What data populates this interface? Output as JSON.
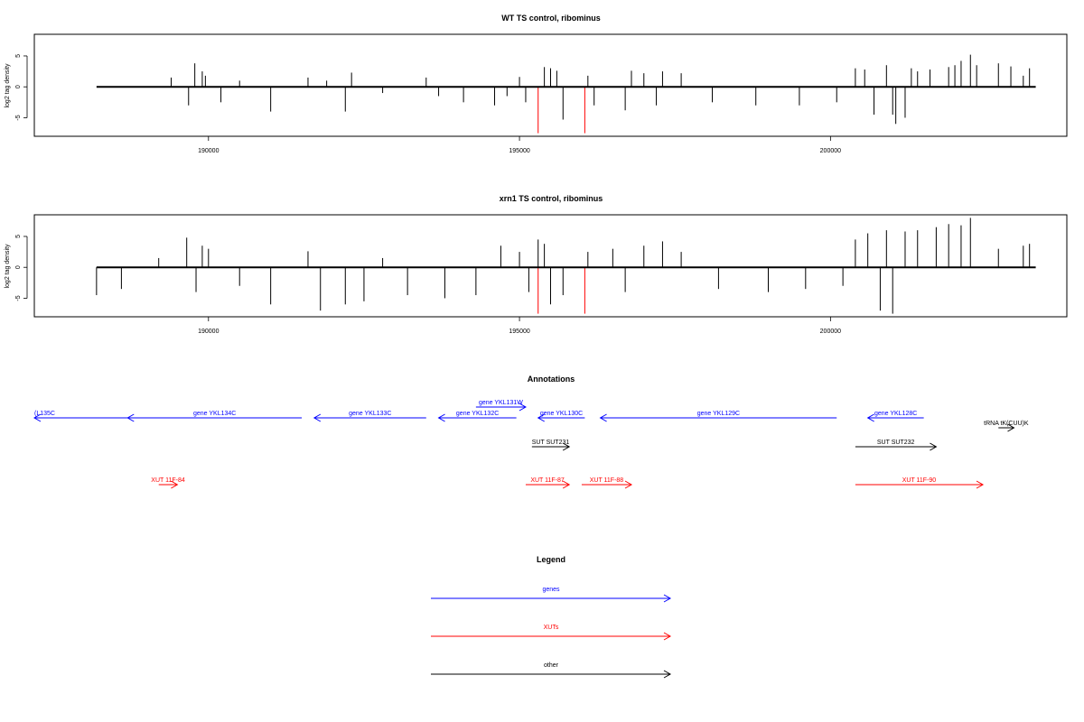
{
  "chart_data": [
    {
      "type": "bar",
      "title": "WT TS control, ribominus",
      "xlabel": "",
      "ylabel": "log2 tag density",
      "xlim": [
        187200,
        203800
      ],
      "ylim": [
        -8,
        8.5
      ],
      "x_ticks": [
        "190000",
        "195000",
        "200000"
      ],
      "y_ticks": [
        "5",
        "0",
        "-5"
      ],
      "grid": false,
      "series": [
        {
          "color": "#000000",
          "points": [
            [
              189400,
              1.5
            ],
            [
              189680,
              -3
            ],
            [
              189780,
              3.8
            ],
            [
              189900,
              2.5
            ],
            [
              189950,
              1.8
            ],
            [
              190200,
              -2.5
            ],
            [
              190500,
              1.0
            ],
            [
              191000,
              -4
            ],
            [
              191600,
              1.5
            ],
            [
              191900,
              1.0
            ],
            [
              192200,
              -4
            ],
            [
              192300,
              2.3
            ],
            [
              192800,
              -1
            ],
            [
              193500,
              1.5
            ],
            [
              193700,
              -1.5
            ],
            [
              194100,
              -2.5
            ],
            [
              194600,
              -3
            ],
            [
              194800,
              -1.5
            ],
            [
              195000,
              1.6
            ],
            [
              195100,
              -2.5
            ],
            [
              195400,
              3.2
            ],
            [
              195500,
              3.0
            ],
            [
              195600,
              2.6
            ],
            [
              195700,
              -5.3
            ],
            [
              196100,
              1.8
            ],
            [
              196200,
              -3
            ],
            [
              196700,
              -3.8
            ],
            [
              196800,
              2.6
            ],
            [
              197000,
              2.2
            ],
            [
              197200,
              -3
            ],
            [
              197300,
              2.5
            ],
            [
              197600,
              2.2
            ],
            [
              198100,
              -2.5
            ],
            [
              198800,
              -3
            ],
            [
              199500,
              -3
            ],
            [
              200100,
              -2.5
            ],
            [
              200400,
              3.0
            ],
            [
              200550,
              2.8
            ],
            [
              200700,
              -4.5
            ],
            [
              200900,
              3.5
            ],
            [
              201000,
              -4.5
            ],
            [
              201050,
              -6
            ],
            [
              201200,
              -5
            ],
            [
              201300,
              3.0
            ],
            [
              201400,
              2.5
            ],
            [
              201600,
              2.8
            ],
            [
              201900,
              3.2
            ],
            [
              202000,
              3.5
            ],
            [
              202100,
              4.2
            ],
            [
              202250,
              5.2
            ],
            [
              202350,
              3.5
            ],
            [
              202700,
              3.8
            ],
            [
              202900,
              3.3
            ],
            [
              203100,
              1.8
            ],
            [
              203200,
              3.0
            ]
          ]
        },
        {
          "color": "#ff0000",
          "points": [
            [
              195300,
              -7.5
            ],
            [
              196050,
              -7.5
            ]
          ]
        }
      ]
    },
    {
      "type": "bar",
      "title": "xrn1 TS control, ribominus",
      "xlabel": "",
      "ylabel": "log2 tag density",
      "xlim": [
        187200,
        203800
      ],
      "ylim": [
        -8,
        8.5
      ],
      "x_ticks": [
        "190000",
        "195000",
        "200000"
      ],
      "y_ticks": [
        "5",
        "0",
        "-5"
      ],
      "grid": false,
      "series": [
        {
          "color": "#000000",
          "points": [
            [
              188200,
              -4.5
            ],
            [
              188600,
              -3.5
            ],
            [
              189200,
              1.5
            ],
            [
              189650,
              4.8
            ],
            [
              189800,
              -4.0
            ],
            [
              189900,
              3.5
            ],
            [
              190000,
              3.0
            ],
            [
              190500,
              -3.0
            ],
            [
              191000,
              -6.0
            ],
            [
              191600,
              2.6
            ],
            [
              191800,
              -7.0
            ],
            [
              192200,
              -6.0
            ],
            [
              192500,
              -5.5
            ],
            [
              192800,
              1.5
            ],
            [
              193200,
              -4.5
            ],
            [
              193800,
              -5.0
            ],
            [
              194300,
              -4.5
            ],
            [
              194700,
              3.5
            ],
            [
              195000,
              2.5
            ],
            [
              195150,
              -4.0
            ],
            [
              195300,
              4.5
            ],
            [
              195400,
              3.8
            ],
            [
              195500,
              -6.0
            ],
            [
              195700,
              -4.5
            ],
            [
              196100,
              2.5
            ],
            [
              196500,
              3.0
            ],
            [
              196700,
              -4.0
            ],
            [
              197000,
              3.5
            ],
            [
              197300,
              4.2
            ],
            [
              197600,
              2.5
            ],
            [
              198200,
              -3.5
            ],
            [
              199000,
              -4.0
            ],
            [
              199600,
              -3.5
            ],
            [
              200200,
              -3.0
            ],
            [
              200400,
              4.5
            ],
            [
              200600,
              5.5
            ],
            [
              200800,
              -7.0
            ],
            [
              200900,
              6.0
            ],
            [
              201000,
              -7.5
            ],
            [
              201200,
              5.8
            ],
            [
              201400,
              6.0
            ],
            [
              201700,
              6.5
            ],
            [
              201900,
              7.0
            ],
            [
              202100,
              6.8
            ],
            [
              202250,
              8.0
            ],
            [
              202700,
              3.0
            ],
            [
              203100,
              3.5
            ],
            [
              203200,
              3.8
            ]
          ]
        },
        {
          "color": "#ff0000",
          "points": [
            [
              195300,
              -7.5
            ],
            [
              196050,
              -7.5
            ]
          ]
        }
      ]
    }
  ],
  "annotations": {
    "title": "Annotations",
    "features": [
      {
        "label": "(L135C",
        "kind": "gene",
        "color": "#0000ff",
        "start": 186900,
        "end": 188700,
        "strand": "-",
        "row": 1
      },
      {
        "label": "gene YKL134C",
        "kind": "gene",
        "color": "#0000ff",
        "start": 188700,
        "end": 191500,
        "strand": "-",
        "row": 1
      },
      {
        "label": "gene YKL133C",
        "kind": "gene",
        "color": "#0000ff",
        "start": 191700,
        "end": 193500,
        "strand": "-",
        "row": 1
      },
      {
        "label": "gene YKL132C",
        "kind": "gene",
        "color": "#0000ff",
        "start": 193700,
        "end": 194950,
        "strand": "-",
        "row": 1
      },
      {
        "label": "gene YKL131W",
        "kind": "gene",
        "color": "#0000ff",
        "start": 194300,
        "end": 195100,
        "strand": "+",
        "row": 0
      },
      {
        "label": "gene YKL130C",
        "kind": "gene",
        "color": "#0000ff",
        "start": 195300,
        "end": 196050,
        "strand": "-",
        "row": 1
      },
      {
        "label": "gene YKL129C",
        "kind": "gene",
        "color": "#0000ff",
        "start": 196300,
        "end": 200100,
        "strand": "-",
        "row": 1
      },
      {
        "label": "gene YKL128C",
        "kind": "gene",
        "color": "#0000ff",
        "start": 200600,
        "end": 201500,
        "strand": "-",
        "row": 1
      },
      {
        "label": "tRNA tK(CUU)K",
        "kind": "other",
        "color": "#000000",
        "start": 202700,
        "end": 202950,
        "strand": "+",
        "row": 2
      },
      {
        "label": "SUT SUT231",
        "kind": "other",
        "color": "#000000",
        "start": 195200,
        "end": 195800,
        "strand": "+",
        "row": 3
      },
      {
        "label": "SUT SUT232",
        "kind": "other",
        "color": "#000000",
        "start": 200400,
        "end": 201700,
        "strand": "+",
        "row": 3
      },
      {
        "label": "XUT 11F-84",
        "kind": "XUT",
        "color": "#ff0000",
        "start": 189200,
        "end": 189500,
        "strand": "+",
        "row": 4
      },
      {
        "label": "XUT 11F-87",
        "kind": "XUT",
        "color": "#ff0000",
        "start": 195100,
        "end": 195800,
        "strand": "+",
        "row": 4
      },
      {
        "label": "XUT 11F-88",
        "kind": "XUT",
        "color": "#ff0000",
        "start": 196000,
        "end": 196800,
        "strand": "+",
        "row": 4
      },
      {
        "label": "XUT 11F-90",
        "kind": "XUT",
        "color": "#ff0000",
        "start": 200400,
        "end": 202450,
        "strand": "+",
        "row": 4
      }
    ]
  },
  "legend": {
    "title": "Legend",
    "items": [
      {
        "label": "genes",
        "color": "#0000ff"
      },
      {
        "label": "XUTs",
        "color": "#ff0000"
      },
      {
        "label": "other",
        "color": "#000000"
      }
    ]
  }
}
